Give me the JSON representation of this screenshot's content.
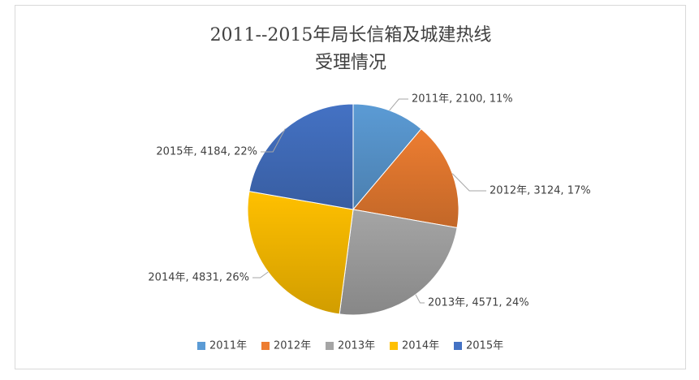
{
  "chart_data": {
    "type": "pie",
    "title": [
      "2011--2015年局长信箱及城建热线",
      "受理情况"
    ],
    "categories": [
      "2011年",
      "2012年",
      "2013年",
      "2014年",
      "2015年"
    ],
    "values": [
      2100,
      3124,
      4571,
      4831,
      4184
    ],
    "value_labels": [
      "2011年, 2100, 11%",
      "2012年, 3124, 17%",
      "2013年, 4571, 24%",
      "2014年, 4831, 26%",
      "2015年, 4184, 22%"
    ],
    "colors": [
      "#5b9bd5",
      "#ed7d31",
      "#a5a5a5",
      "#ffc000",
      "#4472c4"
    ],
    "legend": "bottom"
  }
}
